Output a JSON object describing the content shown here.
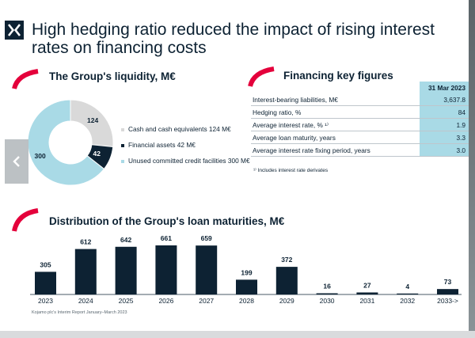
{
  "slide": {
    "title": "High hedging ratio reduced the impact of rising interest rates on financing costs",
    "footer": "Kojamo plc's Interim Report January–March 2023",
    "colors": {
      "navy": "#0d2233",
      "red": "#e4003b",
      "light_blue": "#a9dae6",
      "grey": "#d9d9d9"
    }
  },
  "liquidity": {
    "title": "The Group's liquidity, M€",
    "chart_data": {
      "type": "pie",
      "title": "The Group's liquidity, M€",
      "labels": [
        "Cash and cash equivalents 124 M€",
        "Financial assets 42 M€",
        "Unused committed credit facilities 300 M€"
      ],
      "values": [
        124,
        42,
        300
      ],
      "value_labels": [
        "124",
        "42",
        "300"
      ],
      "colors": [
        "#d9d9d9",
        "#0d2233",
        "#a9dae6"
      ],
      "legend": "right"
    }
  },
  "financing": {
    "title": "Financing key figures",
    "column_header": "31 Mar 2023",
    "rows": [
      {
        "label": "Interest-bearing liabilities, M€",
        "value": "3,637.8"
      },
      {
        "label": "Hedging ratio, %",
        "value": "84"
      },
      {
        "label": "Average interest rate, % ¹⁾",
        "value": "1.9"
      },
      {
        "label": "Average loan maturity, years",
        "value": "3.3"
      },
      {
        "label": "Average interest rate fixing period, years",
        "value": "3.0"
      }
    ],
    "footnote": "¹⁾ Includes interest rate derivates"
  },
  "maturities": {
    "title": "Distribution of the Group's loan maturities, M€",
    "chart_data": {
      "type": "bar",
      "title": "Distribution of the Group's loan maturities, M€",
      "categories": [
        "2023",
        "2024",
        "2025",
        "2026",
        "2027",
        "2028",
        "2029",
        "2030",
        "2031",
        "2032",
        "2033->"
      ],
      "values": [
        305,
        612,
        642,
        661,
        659,
        199,
        372,
        16,
        27,
        4,
        73
      ],
      "value_labels": [
        "305",
        "612",
        "642",
        "661",
        "659",
        "199",
        "372",
        "16",
        "27",
        "4",
        "73"
      ],
      "color": "#0d2233",
      "ylim": [
        0,
        700
      ],
      "grid": false
    }
  }
}
